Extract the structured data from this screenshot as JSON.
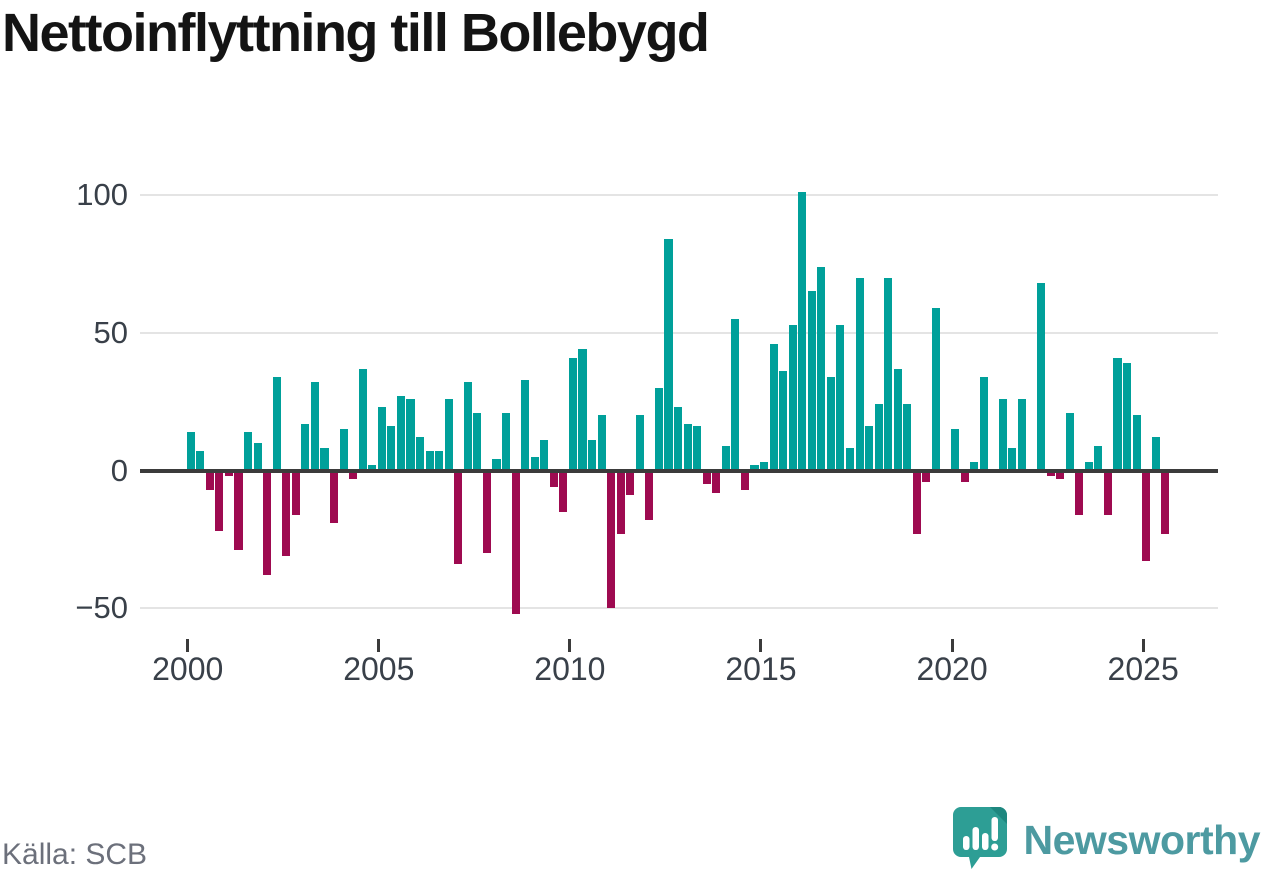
{
  "header": {
    "title": "Nettoinflyttning till Bollebygd"
  },
  "footer": {
    "source": "Källa: SCB",
    "brand": "Newsworthy"
  },
  "chart_data": {
    "type": "bar",
    "title": "Nettoinflyttning till Bollebygd",
    "frequency": "quarterly",
    "start_year": 2000,
    "start_quarter": 1,
    "end_year": 2025,
    "end_quarter": 3,
    "values": [
      14,
      7,
      -7,
      -22,
      -2,
      -29,
      14,
      10,
      -38,
      34,
      -31,
      -16,
      17,
      32,
      8,
      -19,
      15,
      -3,
      37,
      2,
      23,
      16,
      27,
      26,
      12,
      7,
      7,
      26,
      -34,
      32,
      21,
      -30,
      4,
      21,
      -52,
      33,
      5,
      11,
      -6,
      -15,
      41,
      44,
      11,
      20,
      -50,
      -23,
      -9,
      20,
      -18,
      30,
      84,
      23,
      17,
      16,
      -5,
      -8,
      9,
      55,
      -7,
      2,
      3,
      46,
      36,
      53,
      101,
      65,
      74,
      34,
      53,
      8,
      70,
      16,
      24,
      70,
      37,
      24,
      -23,
      -4,
      59,
      0,
      15,
      -4,
      3,
      34,
      0,
      26,
      8,
      26,
      0,
      68,
      -2,
      -3,
      21,
      -16,
      3,
      9,
      -16,
      41,
      39,
      20,
      -33,
      12,
      -23
    ],
    "yticks": [
      {
        "value": 100,
        "label": "100"
      },
      {
        "value": 50,
        "label": "50"
      },
      {
        "value": 0,
        "label": "0"
      },
      {
        "value": -50,
        "label": "−50"
      }
    ],
    "xticks": [
      2000,
      2005,
      2010,
      2015,
      2020,
      2025
    ],
    "ylim": [
      -55,
      105
    ],
    "grid": "horizontal",
    "legend": "none",
    "colors": {
      "positive": "#00a09a",
      "negative": "#9e0a50",
      "zero_line": "#3b3b3b",
      "gridline": "#e4e4e4",
      "axis_text": "#394049",
      "title_text": "#141414",
      "source_text": "#6c707b",
      "brand_text": "#4d9aa1",
      "logo_bubble": "#2d9e95",
      "logo_fold": "#1e877f"
    }
  }
}
